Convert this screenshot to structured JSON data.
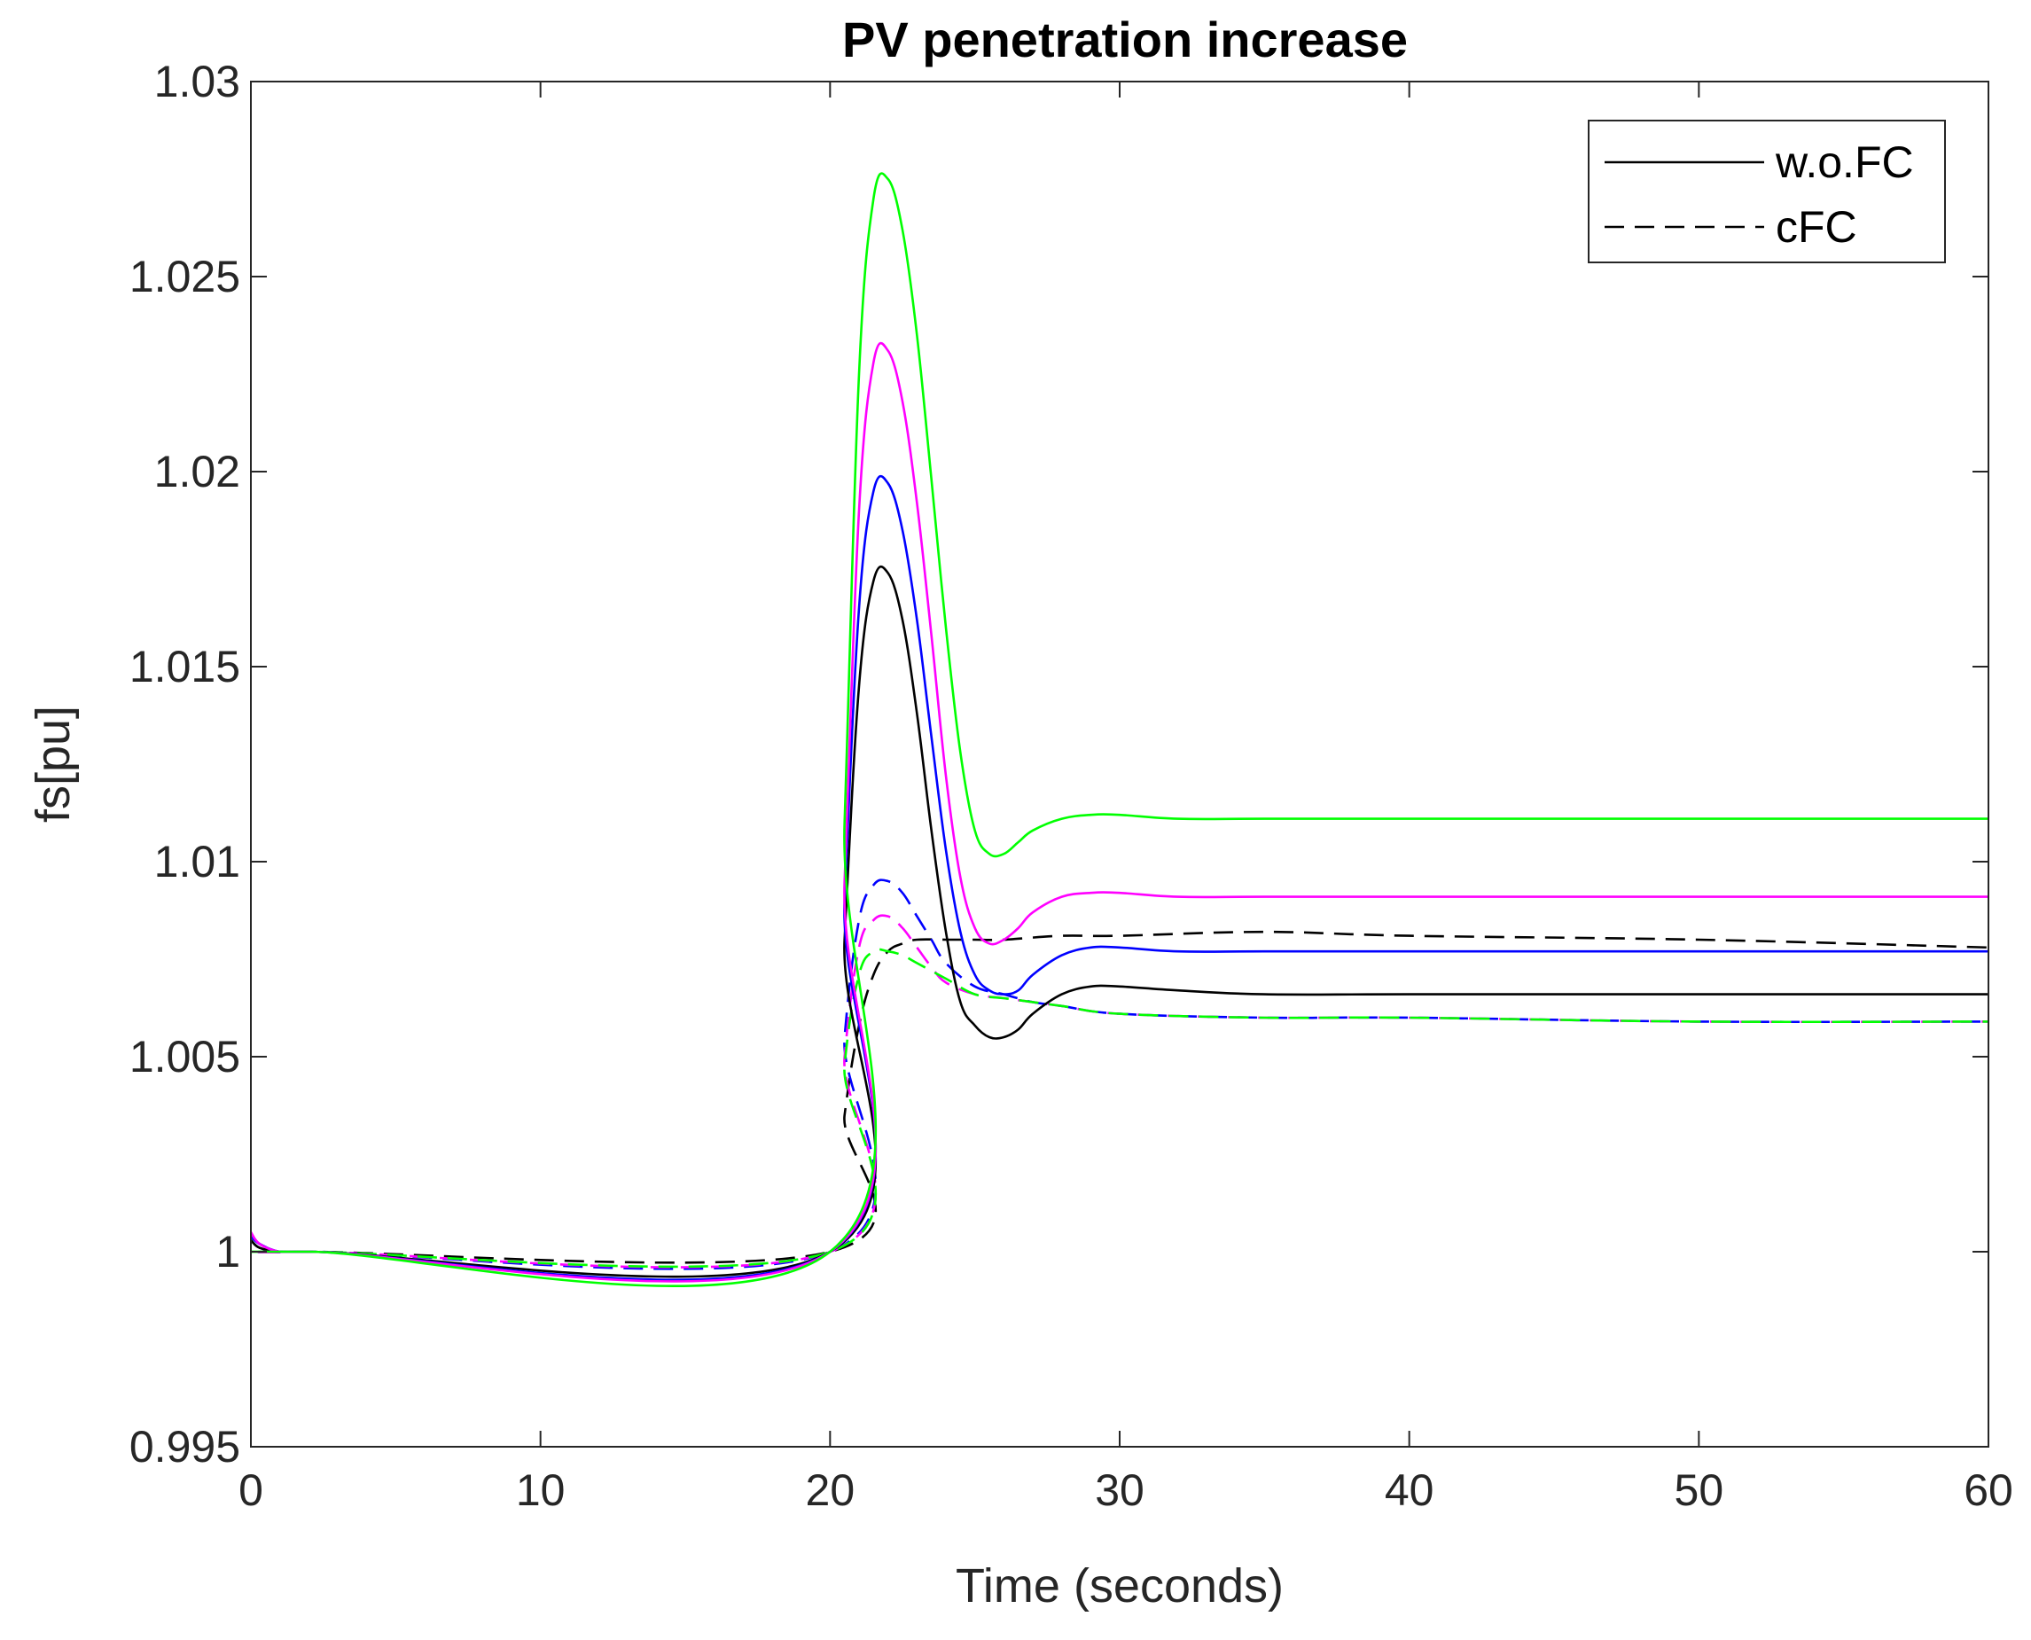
{
  "chart_data": {
    "type": "line",
    "title": "PV penetration increase",
    "xlabel": "Time (seconds)",
    "ylabel": "fs[pu]",
    "xlim": [
      0,
      60
    ],
    "ylim": [
      0.995,
      1.03
    ],
    "xticks": [
      0,
      10,
      20,
      30,
      40,
      50,
      60
    ],
    "xtick_labels": [
      "0",
      "10",
      "20",
      "30",
      "40",
      "50",
      "60"
    ],
    "yticks": [
      0.995,
      1.0,
      1.005,
      1.01,
      1.015,
      1.02,
      1.025,
      1.03
    ],
    "ytick_labels": [
      "0.995",
      "1",
      "1.005",
      "1.01",
      "1.015",
      "1.02",
      "1.025",
      "1.03"
    ],
    "grid": false,
    "legend": {
      "position": "top-right",
      "entries": [
        {
          "label": "w.o.FC",
          "style": "solid",
          "color": "#000000"
        },
        {
          "label": "cFC",
          "style": "dashed",
          "color": "#000000"
        }
      ]
    },
    "series": [
      {
        "name": "w.o.FC black",
        "style": "solid",
        "color": "#000000",
        "x": [
          0,
          0.3,
          1,
          2,
          20,
          20.5,
          21,
          21.5,
          22,
          22.5,
          23,
          23.5,
          24,
          24.5,
          25,
          25.5,
          26,
          26.5,
          27,
          28,
          29,
          30,
          32,
          35,
          40,
          50,
          60
        ],
        "y": [
          1.0003,
          1.0001,
          1.0,
          1.0,
          1.0,
          1.008,
          1.0145,
          1.0172,
          1.0174,
          1.0162,
          1.0138,
          1.0108,
          1.0082,
          1.0064,
          1.0058,
          1.0055,
          1.0055,
          1.0057,
          1.0061,
          1.0066,
          1.0068,
          1.0068,
          1.0067,
          1.0066,
          1.0066,
          1.0066,
          1.0066
        ]
      },
      {
        "name": "w.o.FC blue",
        "style": "solid",
        "color": "#0000ff",
        "x": [
          0,
          0.3,
          1,
          2,
          20,
          20.5,
          21,
          21.5,
          22,
          22.5,
          23,
          23.5,
          24,
          24.5,
          25,
          25.5,
          26,
          26.5,
          27,
          28,
          29,
          30,
          32,
          35,
          40,
          50,
          60
        ],
        "y": [
          1.0004,
          1.0002,
          1.0,
          1.0,
          1.0,
          1.009,
          1.0165,
          1.0195,
          1.0197,
          1.0185,
          1.0162,
          1.0132,
          1.0103,
          1.0082,
          1.0071,
          1.0067,
          1.0066,
          1.0067,
          1.0071,
          1.0076,
          1.0078,
          1.0078,
          1.0077,
          1.0077,
          1.0077,
          1.0077,
          1.0077
        ]
      },
      {
        "name": "w.o.FC magenta",
        "style": "solid",
        "color": "#ff00ff",
        "x": [
          0,
          0.3,
          1,
          2,
          20,
          20.5,
          21,
          21.5,
          22,
          22.5,
          23,
          23.5,
          24,
          24.5,
          25,
          25.5,
          26,
          26.5,
          27,
          28,
          29,
          30,
          32,
          35,
          40,
          50,
          60
        ],
        "y": [
          1.0005,
          1.0002,
          1.0,
          1.0,
          1.0,
          1.0095,
          1.019,
          1.0228,
          1.0231,
          1.0218,
          1.0192,
          1.0158,
          1.0122,
          1.0096,
          1.0083,
          1.0079,
          1.008,
          1.0083,
          1.0087,
          1.0091,
          1.0092,
          1.0092,
          1.0091,
          1.0091,
          1.0091,
          1.0091,
          1.0091
        ]
      },
      {
        "name": "w.o.FC green",
        "style": "solid",
        "color": "#00ff00",
        "x": [
          0,
          0.3,
          1,
          2,
          20,
          20.5,
          21,
          21.5,
          22,
          22.5,
          23,
          23.5,
          24,
          24.5,
          25,
          25.5,
          26,
          26.5,
          27,
          28,
          29,
          30,
          32,
          35,
          40,
          50,
          60
        ],
        "y": [
          1.0,
          1.0,
          1.0,
          1.0,
          1.0,
          1.011,
          1.0225,
          1.027,
          1.0275,
          1.0262,
          1.0235,
          1.0198,
          1.016,
          1.0128,
          1.0108,
          1.0102,
          1.0102,
          1.0105,
          1.0108,
          1.0111,
          1.0112,
          1.0112,
          1.0111,
          1.0111,
          1.0111,
          1.0111,
          1.0111
        ]
      },
      {
        "name": "cFC black",
        "style": "dashed",
        "color": "#000000",
        "x": [
          0,
          0.3,
          1,
          2,
          20,
          20.5,
          21,
          21.5,
          22,
          22.5,
          23,
          24,
          25,
          26,
          28,
          30,
          35,
          40,
          50,
          60
        ],
        "y": [
          1.0003,
          1.0001,
          1.0,
          1.0,
          1.0,
          1.0035,
          1.0058,
          1.0071,
          1.0077,
          1.0079,
          1.008,
          1.008,
          1.008,
          1.008,
          1.0081,
          1.0081,
          1.0082,
          1.0081,
          1.008,
          1.0078
        ]
      },
      {
        "name": "cFC blue",
        "style": "dashed",
        "color": "#0000ff",
        "x": [
          0,
          0.3,
          1,
          2,
          20,
          20.5,
          21,
          21.5,
          22,
          22.5,
          23,
          23.5,
          24,
          25,
          26,
          27,
          28,
          30,
          35,
          40,
          50,
          60
        ],
        "y": [
          1.0004,
          1.0002,
          1.0,
          1.0,
          1.0,
          1.0055,
          1.0085,
          1.0094,
          1.0095,
          1.0092,
          1.0086,
          1.008,
          1.0074,
          1.0068,
          1.0066,
          1.0064,
          1.0063,
          1.0061,
          1.006,
          1.006,
          1.0059,
          1.0059
        ]
      },
      {
        "name": "cFC magenta",
        "style": "dashed",
        "color": "#ff00ff",
        "x": [
          0,
          0.3,
          1,
          2,
          20,
          20.5,
          21,
          21.5,
          22,
          22.5,
          23,
          23.5,
          24,
          25,
          26,
          27,
          28,
          30,
          35,
          40,
          50,
          60
        ],
        "y": [
          1.0005,
          1.0002,
          1.0,
          1.0,
          1.0,
          1.005,
          1.0078,
          1.0085,
          1.0086,
          1.0083,
          1.0078,
          1.0073,
          1.0069,
          1.0066,
          1.0065,
          1.0064,
          1.0063,
          1.0061,
          1.006,
          1.006,
          1.0059,
          1.0059
        ]
      },
      {
        "name": "cFC green",
        "style": "dashed",
        "color": "#00ff00",
        "x": [
          0,
          0.3,
          1,
          2,
          20,
          20.5,
          21,
          21.5,
          22,
          22.5,
          23,
          24,
          25,
          26,
          27,
          28,
          30,
          35,
          40,
          50,
          60
        ],
        "y": [
          1.0,
          1.0,
          1.0,
          1.0,
          1.0,
          1.0048,
          1.0071,
          1.0077,
          1.0077,
          1.0076,
          1.0074,
          1.007,
          1.0066,
          1.0065,
          1.0064,
          1.0063,
          1.0061,
          1.006,
          1.006,
          1.0059,
          1.0059
        ]
      }
    ]
  }
}
